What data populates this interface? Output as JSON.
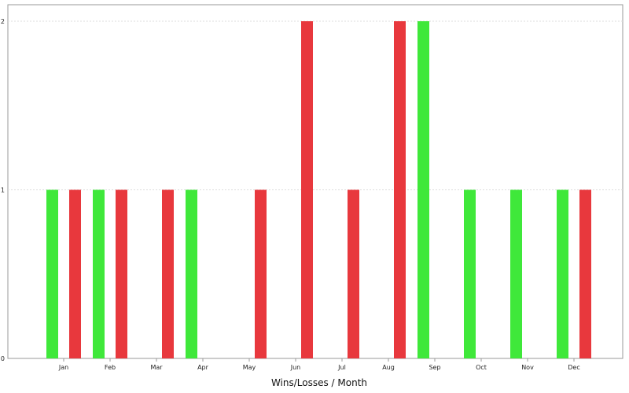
{
  "chart_data": {
    "type": "bar",
    "title": "",
    "xlabel": "Wins/Losses / Month",
    "ylabel": "",
    "ylim": [
      0,
      2
    ],
    "yticks": [
      "0",
      "1",
      "2"
    ],
    "categories": [
      "Jan",
      "Feb",
      "Mar",
      "Apr",
      "May",
      "Jun",
      "Jul",
      "Aug",
      "Sep",
      "Oct",
      "Nov",
      "Dec"
    ],
    "series": [
      {
        "color": "#3fe83a",
        "values": [
          1,
          1,
          0,
          1,
          0,
          0,
          0,
          0,
          2,
          1,
          1,
          1
        ]
      },
      {
        "color": "#e8383d",
        "values": [
          1,
          1,
          1,
          0,
          1,
          2,
          1,
          2,
          0,
          0,
          0,
          1
        ]
      }
    ],
    "grid": true,
    "legend": "none"
  }
}
